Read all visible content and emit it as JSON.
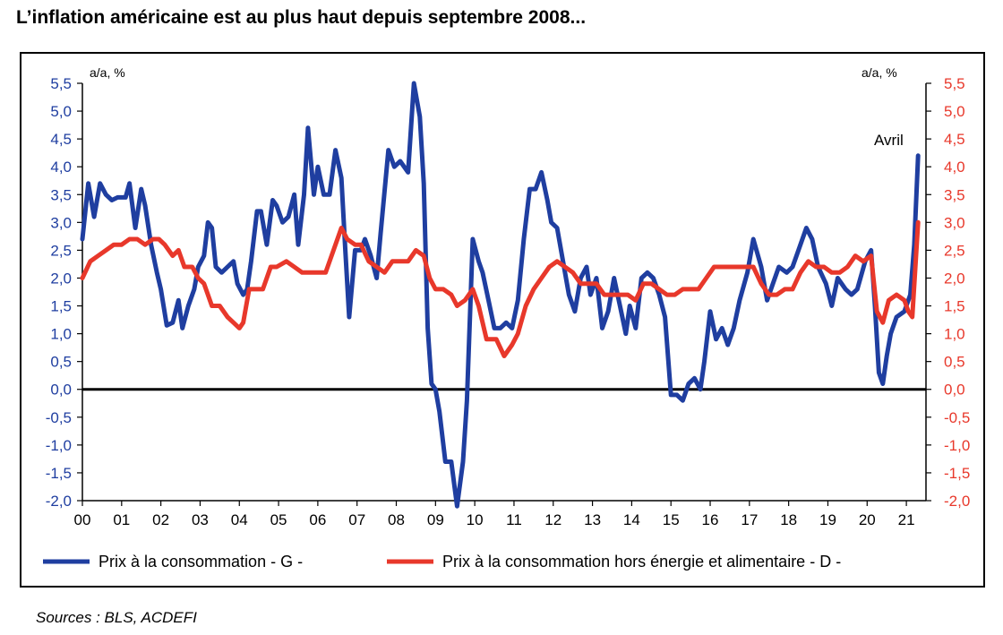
{
  "header": {
    "title": "L’inflation américaine est au plus haut depuis septembre 2008..."
  },
  "footer": {
    "sources": "Sources : BLS, ACDEFI"
  },
  "colors": {
    "cpi": "#1f3ea0",
    "core": "#e8382b",
    "left_axis": "#1f3ea0",
    "right_axis": "#e8382b",
    "zero_line": "#000000"
  },
  "chart_data": {
    "type": "line",
    "title": "",
    "xlabel": "",
    "ylabel_left": "a/a, %",
    "ylabel_right": "a/a, %",
    "ylim": [
      -2.0,
      5.5
    ],
    "y_ticks": [
      "5,5",
      "5,0",
      "4,5",
      "4,0",
      "3,5",
      "3,0",
      "2,5",
      "2,0",
      "1,5",
      "1,0",
      "0,5",
      "0,0",
      "-0,5",
      "-1,0",
      "-1,5",
      "-2,0"
    ],
    "y_right_ticks": [
      "5,5",
      "5,0",
      "4,5",
      "4,0",
      "3,5",
      "3,0",
      "2,5",
      "2,0",
      "1,5",
      "1,0",
      "0,5",
      "0,0",
      "-0,5",
      "-1,0",
      "-1,5",
      "-2,0"
    ],
    "x_ticks": [
      "00",
      "01",
      "02",
      "03",
      "04",
      "05",
      "06",
      "07",
      "08",
      "09",
      "10",
      "11",
      "12",
      "13",
      "14",
      "15",
      "16",
      "17",
      "18",
      "19",
      "20",
      "21"
    ],
    "xlim": [
      2000.0,
      2021.5
    ],
    "annotation": "Avril",
    "legend_placement": "bottom",
    "grid": false,
    "series": [
      {
        "name": "Prix à la consommation - G -",
        "axis": "left",
        "points": [
          [
            2000.0,
            2.7
          ],
          [
            2000.15,
            3.7
          ],
          [
            2000.3,
            3.1
          ],
          [
            2000.45,
            3.7
          ],
          [
            2000.6,
            3.5
          ],
          [
            2000.75,
            3.4
          ],
          [
            2000.9,
            3.45
          ],
          [
            2001.1,
            3.45
          ],
          [
            2001.2,
            3.7
          ],
          [
            2001.35,
            2.9
          ],
          [
            2001.5,
            3.6
          ],
          [
            2001.6,
            3.3
          ],
          [
            2001.75,
            2.6
          ],
          [
            2001.9,
            2.1
          ],
          [
            2002.0,
            1.8
          ],
          [
            2002.15,
            1.15
          ],
          [
            2002.3,
            1.2
          ],
          [
            2002.45,
            1.6
          ],
          [
            2002.55,
            1.1
          ],
          [
            2002.7,
            1.5
          ],
          [
            2002.85,
            1.8
          ],
          [
            2002.95,
            2.2
          ],
          [
            2003.1,
            2.4
          ],
          [
            2003.2,
            3.0
          ],
          [
            2003.3,
            2.9
          ],
          [
            2003.4,
            2.2
          ],
          [
            2003.55,
            2.1
          ],
          [
            2003.7,
            2.2
          ],
          [
            2003.85,
            2.3
          ],
          [
            2003.95,
            1.9
          ],
          [
            2004.1,
            1.7
          ],
          [
            2004.2,
            1.8
          ],
          [
            2004.3,
            2.3
          ],
          [
            2004.45,
            3.2
          ],
          [
            2004.55,
            3.2
          ],
          [
            2004.7,
            2.6
          ],
          [
            2004.85,
            3.4
          ],
          [
            2004.95,
            3.3
          ],
          [
            2005.1,
            3.0
          ],
          [
            2005.25,
            3.1
          ],
          [
            2005.4,
            3.5
          ],
          [
            2005.5,
            2.6
          ],
          [
            2005.65,
            3.5
          ],
          [
            2005.75,
            4.7
          ],
          [
            2005.9,
            3.5
          ],
          [
            2006.0,
            4.0
          ],
          [
            2006.15,
            3.5
          ],
          [
            2006.3,
            3.5
          ],
          [
            2006.45,
            4.3
          ],
          [
            2006.6,
            3.8
          ],
          [
            2006.7,
            2.5
          ],
          [
            2006.8,
            1.3
          ],
          [
            2006.95,
            2.5
          ],
          [
            2007.1,
            2.5
          ],
          [
            2007.2,
            2.7
          ],
          [
            2007.35,
            2.4
          ],
          [
            2007.5,
            2.0
          ],
          [
            2007.6,
            2.8
          ],
          [
            2007.8,
            4.3
          ],
          [
            2007.95,
            4.0
          ],
          [
            2008.1,
            4.1
          ],
          [
            2008.3,
            3.9
          ],
          [
            2008.45,
            5.5
          ],
          [
            2008.6,
            4.9
          ],
          [
            2008.7,
            3.7
          ],
          [
            2008.8,
            1.1
          ],
          [
            2008.9,
            0.1
          ],
          [
            2009.0,
            0.0
          ],
          [
            2009.1,
            -0.4
          ],
          [
            2009.25,
            -1.3
          ],
          [
            2009.4,
            -1.3
          ],
          [
            2009.55,
            -2.1
          ],
          [
            2009.7,
            -1.3
          ],
          [
            2009.8,
            -0.2
          ],
          [
            2009.95,
            2.7
          ],
          [
            2010.1,
            2.3
          ],
          [
            2010.2,
            2.1
          ],
          [
            2010.35,
            1.6
          ],
          [
            2010.5,
            1.1
          ],
          [
            2010.65,
            1.1
          ],
          [
            2010.8,
            1.2
          ],
          [
            2010.95,
            1.1
          ],
          [
            2011.1,
            1.6
          ],
          [
            2011.25,
            2.7
          ],
          [
            2011.4,
            3.6
          ],
          [
            2011.55,
            3.6
          ],
          [
            2011.7,
            3.9
          ],
          [
            2011.85,
            3.4
          ],
          [
            2011.95,
            3.0
          ],
          [
            2012.1,
            2.9
          ],
          [
            2012.25,
            2.3
          ],
          [
            2012.4,
            1.7
          ],
          [
            2012.55,
            1.4
          ],
          [
            2012.7,
            2.0
          ],
          [
            2012.85,
            2.2
          ],
          [
            2012.95,
            1.7
          ],
          [
            2013.1,
            2.0
          ],
          [
            2013.25,
            1.1
          ],
          [
            2013.4,
            1.4
          ],
          [
            2013.55,
            2.0
          ],
          [
            2013.7,
            1.5
          ],
          [
            2013.85,
            1.0
          ],
          [
            2013.95,
            1.5
          ],
          [
            2014.1,
            1.1
          ],
          [
            2014.25,
            2.0
          ],
          [
            2014.4,
            2.1
          ],
          [
            2014.55,
            2.0
          ],
          [
            2014.7,
            1.7
          ],
          [
            2014.85,
            1.3
          ],
          [
            2015.0,
            -0.1
          ],
          [
            2015.15,
            -0.1
          ],
          [
            2015.3,
            -0.2
          ],
          [
            2015.45,
            0.1
          ],
          [
            2015.6,
            0.2
          ],
          [
            2015.75,
            0.0
          ],
          [
            2015.85,
            0.5
          ],
          [
            2016.0,
            1.4
          ],
          [
            2016.15,
            0.9
          ],
          [
            2016.3,
            1.1
          ],
          [
            2016.45,
            0.8
          ],
          [
            2016.6,
            1.1
          ],
          [
            2016.75,
            1.6
          ],
          [
            2016.95,
            2.1
          ],
          [
            2017.1,
            2.7
          ],
          [
            2017.3,
            2.2
          ],
          [
            2017.45,
            1.6
          ],
          [
            2017.6,
            1.9
          ],
          [
            2017.75,
            2.2
          ],
          [
            2017.95,
            2.1
          ],
          [
            2018.1,
            2.2
          ],
          [
            2018.25,
            2.5
          ],
          [
            2018.45,
            2.9
          ],
          [
            2018.6,
            2.7
          ],
          [
            2018.75,
            2.2
          ],
          [
            2018.95,
            1.9
          ],
          [
            2019.1,
            1.5
          ],
          [
            2019.25,
            2.0
          ],
          [
            2019.45,
            1.8
          ],
          [
            2019.6,
            1.7
          ],
          [
            2019.75,
            1.8
          ],
          [
            2019.95,
            2.3
          ],
          [
            2020.1,
            2.5
          ],
          [
            2020.2,
            1.5
          ],
          [
            2020.3,
            0.3
          ],
          [
            2020.4,
            0.1
          ],
          [
            2020.5,
            0.6
          ],
          [
            2020.6,
            1.0
          ],
          [
            2020.75,
            1.3
          ],
          [
            2020.95,
            1.4
          ],
          [
            2021.1,
            1.7
          ],
          [
            2021.2,
            2.6
          ],
          [
            2021.3,
            4.2
          ]
        ]
      },
      {
        "name": "Prix à la consommation hors énergie et alimentaire - D -",
        "axis": "right",
        "points": [
          [
            2000.0,
            2.0
          ],
          [
            2000.2,
            2.3
          ],
          [
            2000.4,
            2.4
          ],
          [
            2000.6,
            2.5
          ],
          [
            2000.8,
            2.6
          ],
          [
            2001.0,
            2.6
          ],
          [
            2001.2,
            2.7
          ],
          [
            2001.4,
            2.7
          ],
          [
            2001.6,
            2.6
          ],
          [
            2001.8,
            2.7
          ],
          [
            2001.95,
            2.7
          ],
          [
            2002.1,
            2.6
          ],
          [
            2002.3,
            2.4
          ],
          [
            2002.45,
            2.5
          ],
          [
            2002.6,
            2.2
          ],
          [
            2002.8,
            2.2
          ],
          [
            2002.95,
            2.0
          ],
          [
            2003.1,
            1.9
          ],
          [
            2003.3,
            1.5
          ],
          [
            2003.5,
            1.5
          ],
          [
            2003.7,
            1.3
          ],
          [
            2003.85,
            1.2
          ],
          [
            2004.0,
            1.1
          ],
          [
            2004.1,
            1.2
          ],
          [
            2004.25,
            1.8
          ],
          [
            2004.45,
            1.8
          ],
          [
            2004.6,
            1.8
          ],
          [
            2004.8,
            2.2
          ],
          [
            2004.95,
            2.2
          ],
          [
            2005.2,
            2.3
          ],
          [
            2005.4,
            2.2
          ],
          [
            2005.6,
            2.1
          ],
          [
            2005.8,
            2.1
          ],
          [
            2006.0,
            2.1
          ],
          [
            2006.2,
            2.1
          ],
          [
            2006.4,
            2.5
          ],
          [
            2006.6,
            2.9
          ],
          [
            2006.75,
            2.7
          ],
          [
            2006.95,
            2.6
          ],
          [
            2007.1,
            2.6
          ],
          [
            2007.3,
            2.3
          ],
          [
            2007.5,
            2.2
          ],
          [
            2007.7,
            2.1
          ],
          [
            2007.9,
            2.3
          ],
          [
            2008.1,
            2.3
          ],
          [
            2008.3,
            2.3
          ],
          [
            2008.5,
            2.5
          ],
          [
            2008.7,
            2.4
          ],
          [
            2008.85,
            2.0
          ],
          [
            2009.0,
            1.8
          ],
          [
            2009.2,
            1.8
          ],
          [
            2009.4,
            1.7
          ],
          [
            2009.55,
            1.5
          ],
          [
            2009.75,
            1.6
          ],
          [
            2009.95,
            1.8
          ],
          [
            2010.1,
            1.5
          ],
          [
            2010.3,
            0.9
          ],
          [
            2010.55,
            0.9
          ],
          [
            2010.75,
            0.6
          ],
          [
            2010.95,
            0.8
          ],
          [
            2011.1,
            1.0
          ],
          [
            2011.3,
            1.5
          ],
          [
            2011.5,
            1.8
          ],
          [
            2011.7,
            2.0
          ],
          [
            2011.9,
            2.2
          ],
          [
            2012.1,
            2.3
          ],
          [
            2012.3,
            2.2
          ],
          [
            2012.5,
            2.1
          ],
          [
            2012.7,
            1.9
          ],
          [
            2012.9,
            1.9
          ],
          [
            2013.1,
            1.9
          ],
          [
            2013.3,
            1.7
          ],
          [
            2013.5,
            1.7
          ],
          [
            2013.7,
            1.7
          ],
          [
            2013.9,
            1.7
          ],
          [
            2014.1,
            1.6
          ],
          [
            2014.3,
            1.9
          ],
          [
            2014.5,
            1.9
          ],
          [
            2014.7,
            1.8
          ],
          [
            2014.9,
            1.7
          ],
          [
            2015.1,
            1.7
          ],
          [
            2015.3,
            1.8
          ],
          [
            2015.5,
            1.8
          ],
          [
            2015.7,
            1.8
          ],
          [
            2015.9,
            2.0
          ],
          [
            2016.1,
            2.2
          ],
          [
            2016.3,
            2.2
          ],
          [
            2016.5,
            2.2
          ],
          [
            2016.7,
            2.2
          ],
          [
            2016.9,
            2.2
          ],
          [
            2017.1,
            2.2
          ],
          [
            2017.3,
            1.9
          ],
          [
            2017.5,
            1.7
          ],
          [
            2017.7,
            1.7
          ],
          [
            2017.9,
            1.8
          ],
          [
            2018.1,
            1.8
          ],
          [
            2018.3,
            2.1
          ],
          [
            2018.5,
            2.3
          ],
          [
            2018.7,
            2.2
          ],
          [
            2018.9,
            2.2
          ],
          [
            2019.1,
            2.1
          ],
          [
            2019.3,
            2.1
          ],
          [
            2019.5,
            2.2
          ],
          [
            2019.7,
            2.4
          ],
          [
            2019.9,
            2.3
          ],
          [
            2020.1,
            2.4
          ],
          [
            2020.25,
            1.4
          ],
          [
            2020.4,
            1.2
          ],
          [
            2020.55,
            1.6
          ],
          [
            2020.75,
            1.7
          ],
          [
            2020.95,
            1.6
          ],
          [
            2021.05,
            1.4
          ],
          [
            2021.15,
            1.3
          ],
          [
            2021.3,
            3.0
          ]
        ]
      }
    ]
  }
}
